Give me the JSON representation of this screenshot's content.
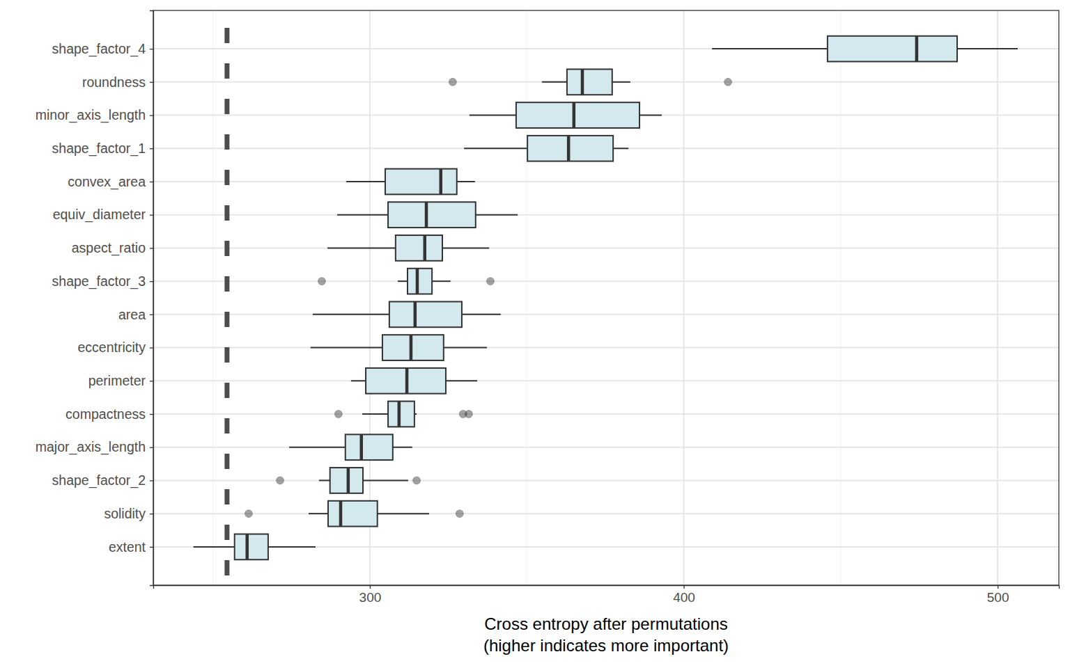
{
  "chart_data": {
    "type": "box",
    "orientation": "horizontal",
    "x_label": "Cross entropy after permutations\n(higher indicates more important)",
    "categories": [
      "shape_factor_4",
      "roundness",
      "minor_axis_length",
      "shape_factor_1",
      "convex_area",
      "equiv_diameter",
      "aspect_ratio",
      "shape_factor_3",
      "area",
      "eccentricity",
      "perimeter",
      "compactness",
      "major_axis_length",
      "shape_factor_2",
      "solidity",
      "extent"
    ],
    "boxes": [
      {
        "min": 409.0,
        "q1": 445.8,
        "median": 474.2,
        "q3": 487.1,
        "max": 506.4,
        "outliers": []
      },
      {
        "min": 354.8,
        "q1": 362.8,
        "median": 367.7,
        "q3": 377.2,
        "max": 383.0,
        "outliers": [
          326.4,
          414.1
        ]
      },
      {
        "min": 331.7,
        "q1": 346.6,
        "median": 365.0,
        "q3": 385.9,
        "max": 393.0,
        "outliers": []
      },
      {
        "min": 330.0,
        "q1": 350.2,
        "median": 363.3,
        "q3": 377.5,
        "max": 382.4,
        "outliers": []
      },
      {
        "min": 292.5,
        "q1": 304.9,
        "median": 322.6,
        "q3": 327.7,
        "max": 333.5,
        "outliers": []
      },
      {
        "min": 289.6,
        "q1": 305.8,
        "median": 318.0,
        "q3": 333.7,
        "max": 347.1,
        "outliers": []
      },
      {
        "min": 286.5,
        "q1": 308.2,
        "median": 317.5,
        "q3": 323.1,
        "max": 338.0,
        "outliers": []
      },
      {
        "min": 308.9,
        "q1": 312.0,
        "median": 315.1,
        "q3": 319.8,
        "max": 325.7,
        "outliers": [
          284.7,
          338.4
        ]
      },
      {
        "min": 281.8,
        "q1": 306.2,
        "median": 314.4,
        "q3": 329.3,
        "max": 341.7,
        "outliers": []
      },
      {
        "min": 281.1,
        "q1": 304.0,
        "median": 313.1,
        "q3": 323.5,
        "max": 337.3,
        "outliers": []
      },
      {
        "min": 294.0,
        "q1": 298.7,
        "median": 311.8,
        "q3": 324.2,
        "max": 334.2,
        "outliers": []
      },
      {
        "min": 297.6,
        "q1": 305.8,
        "median": 309.3,
        "q3": 314.2,
        "max": 314.9,
        "outliers": [
          290.0,
          329.7,
          331.5
        ]
      },
      {
        "min": 274.3,
        "q1": 292.2,
        "median": 297.3,
        "q3": 307.3,
        "max": 313.5,
        "outliers": []
      },
      {
        "min": 283.8,
        "q1": 287.3,
        "median": 293.1,
        "q3": 297.8,
        "max": 312.2,
        "outliers": [
          271.4,
          314.9
        ]
      },
      {
        "min": 280.5,
        "q1": 286.7,
        "median": 290.7,
        "q3": 302.4,
        "max": 318.9,
        "outliers": [
          261.4,
          328.6
        ]
      },
      {
        "min": 243.8,
        "q1": 256.9,
        "median": 260.9,
        "q3": 267.6,
        "max": 282.7,
        "outliers": []
      }
    ],
    "baseline": 254.5,
    "color": "#d3e9ed",
    "xlim": [
      231.0,
      519.5
    ],
    "xticks": [
      300,
      400,
      500
    ],
    "grid": true
  }
}
